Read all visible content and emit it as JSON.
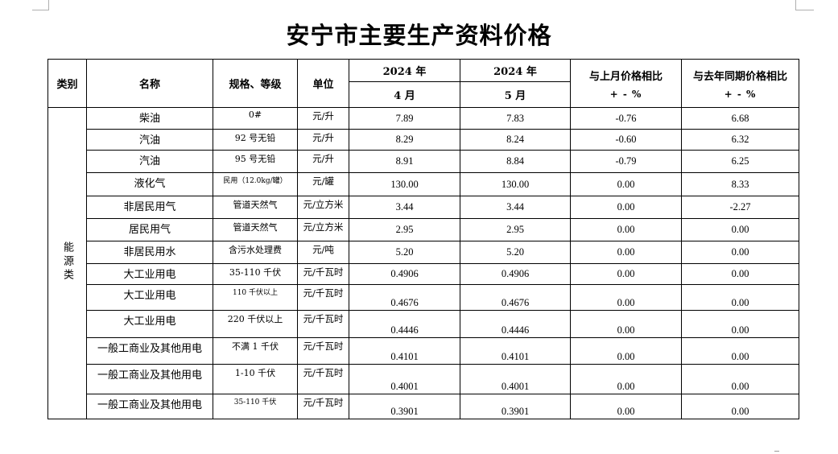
{
  "title": "安宁市主要生产资料价格",
  "headers": {
    "category": "类别",
    "name": "名称",
    "spec": "规格、等级",
    "unit": "单位",
    "year_a": "2024 年",
    "month_a": "4 月",
    "year_b": "2024 年",
    "month_b": "5 月",
    "mom": "与上月价格相比",
    "mom_unit": "+ - %",
    "yoy": "与去年同期价格相比",
    "yoy_unit": "+ - %"
  },
  "category": "能源类",
  "rows": [
    {
      "name": "柴油",
      "spec": "0#",
      "unit": "元/升",
      "april": "7.89",
      "may": "7.83",
      "mom": "-0.76",
      "yoy": "6.68"
    },
    {
      "name": "汽油",
      "spec": "92 号无铅",
      "unit": "元/升",
      "april": "8.29",
      "may": "8.24",
      "mom": "-0.60",
      "yoy": "6.32"
    },
    {
      "name": "汽油",
      "spec": "95 号无铅",
      "unit": "元/升",
      "april": "8.91",
      "may": "8.84",
      "mom": "-0.79",
      "yoy": "6.25"
    },
    {
      "name": "液化气",
      "spec": "民用（12.0kg/罐）",
      "unit": "元/罐",
      "april": "130.00",
      "may": "130.00",
      "mom": "0.00",
      "yoy": "8.33"
    },
    {
      "name": "非居民用气",
      "spec": "管道天然气",
      "unit": "元/立方米",
      "april": "3.44",
      "may": "3.44",
      "mom": "0.00",
      "yoy": "-2.27"
    },
    {
      "name": "居民用气",
      "spec": "管道天然气",
      "unit": "元/立方米",
      "april": "2.95",
      "may": "2.95",
      "mom": "0.00",
      "yoy": "0.00"
    },
    {
      "name": "非居民用水",
      "spec": "含污水处理费",
      "unit": "元/吨",
      "april": "5.20",
      "may": "5.20",
      "mom": "0.00",
      "yoy": "0.00"
    },
    {
      "name": "大工业用电",
      "spec": "35-110 千伏",
      "unit": "元/千瓦时",
      "april": "0.4906",
      "may": "0.4906",
      "mom": "0.00",
      "yoy": "0.00"
    },
    {
      "name": "大工业用电",
      "spec": "110 千伏以上",
      "unit": "元/千瓦时",
      "april": "0.4676",
      "may": "0.4676",
      "mom": "0.00",
      "yoy": "0.00"
    },
    {
      "name": "大工业用电",
      "spec": "220 千伏以上",
      "unit": "元/千瓦时",
      "april": "0.4446",
      "may": "0.4446",
      "mom": "0.00",
      "yoy": "0.00"
    },
    {
      "name": "一般工商业及其他用电",
      "spec": "不满 1 千伏",
      "unit": "元/千瓦时",
      "april": "0.4101",
      "may": "0.4101",
      "mom": "0.00",
      "yoy": "0.00"
    },
    {
      "name": "一般工商业及其他用电",
      "spec": "1-10 千伏",
      "unit": "元/千瓦时",
      "april": "0.4001",
      "may": "0.4001",
      "mom": "0.00",
      "yoy": "0.00"
    },
    {
      "name": "一般工商业及其他用电",
      "spec": "35-110 千伏",
      "unit": "元/千瓦时",
      "april": "0.3901",
      "may": "0.3901",
      "mom": "0.00",
      "yoy": "0.00"
    }
  ]
}
